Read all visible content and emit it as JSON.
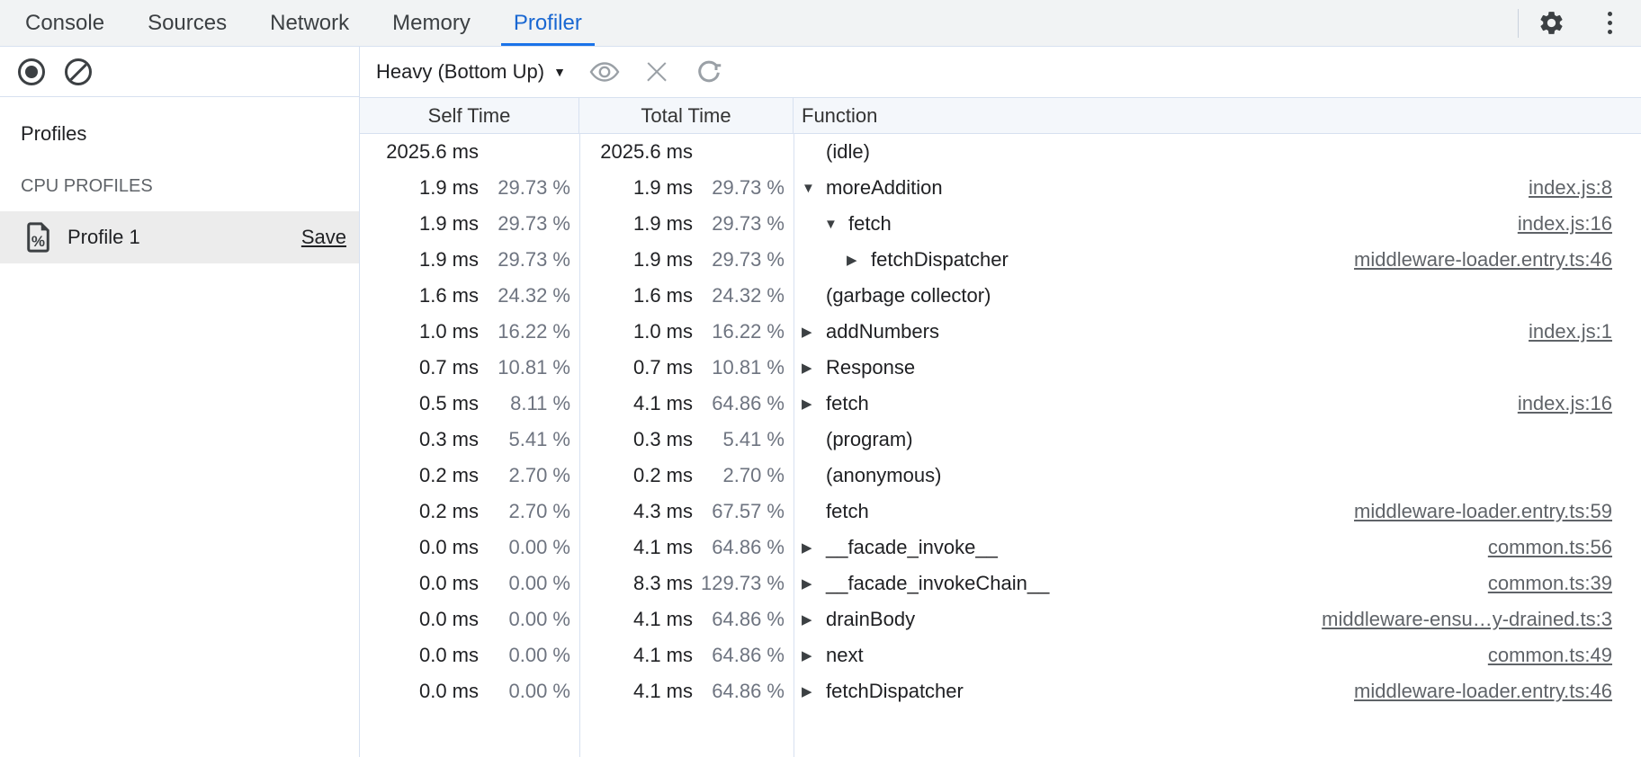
{
  "colors": {
    "accent": "#1a73e8",
    "active_tab_text": "#1967d2",
    "hairline": "#d7e1f0",
    "header_bg": "#f4f7fb",
    "selected_row_bg": "#ececec",
    "link": "#5f6368",
    "pct_text": "#6e7480"
  },
  "tabs": {
    "items": [
      {
        "label": "Console"
      },
      {
        "label": "Sources"
      },
      {
        "label": "Network"
      },
      {
        "label": "Memory"
      },
      {
        "label": "Profiler"
      }
    ],
    "active_tab": "Profiler"
  },
  "tabbar_icons": {
    "settings": "gear-icon",
    "more": "kebab-menu-icon"
  },
  "sidebar": {
    "toolbar_icons": {
      "record": "record-icon",
      "clear": "block-icon"
    },
    "profiles_heading": "Profiles",
    "group_heading": "CPU PROFILES",
    "profile": {
      "icon": "profile-document-icon",
      "name": "Profile 1",
      "save_label": "Save"
    }
  },
  "grid_toolbar": {
    "view_selector_value": "Heavy (Bottom Up)",
    "caret": "▼",
    "icons": {
      "focus": "eye-icon",
      "exclude": "close-icon",
      "restore": "refresh-icon"
    }
  },
  "grid": {
    "columns": [
      "Self Time",
      "Total Time",
      "Function"
    ],
    "tree_arrows": {
      "down": "▼",
      "right": "▶"
    },
    "rows": [
      {
        "self_ms": "2025.6 ms",
        "self_pct": "",
        "total_ms": "2025.6 ms",
        "total_pct": "",
        "fn": "(idle)",
        "level": 0,
        "arrow": null,
        "link": ""
      },
      {
        "self_ms": "1.9 ms",
        "self_pct": "29.73 %",
        "total_ms": "1.9 ms",
        "total_pct": "29.73 %",
        "fn": "moreAddition",
        "level": 0,
        "arrow": "down",
        "link": "index.js:8"
      },
      {
        "self_ms": "1.9 ms",
        "self_pct": "29.73 %",
        "total_ms": "1.9 ms",
        "total_pct": "29.73 %",
        "fn": "fetch",
        "level": 1,
        "arrow": "down",
        "link": "index.js:16"
      },
      {
        "self_ms": "1.9 ms",
        "self_pct": "29.73 %",
        "total_ms": "1.9 ms",
        "total_pct": "29.73 %",
        "fn": "fetchDispatcher",
        "level": 2,
        "arrow": "right",
        "link": "middleware-loader.entry.ts:46"
      },
      {
        "self_ms": "1.6 ms",
        "self_pct": "24.32 %",
        "total_ms": "1.6 ms",
        "total_pct": "24.32 %",
        "fn": "(garbage collector)",
        "level": 0,
        "arrow": null,
        "link": ""
      },
      {
        "self_ms": "1.0 ms",
        "self_pct": "16.22 %",
        "total_ms": "1.0 ms",
        "total_pct": "16.22 %",
        "fn": "addNumbers",
        "level": 0,
        "arrow": "right",
        "link": "index.js:1"
      },
      {
        "self_ms": "0.7 ms",
        "self_pct": "10.81 %",
        "total_ms": "0.7 ms",
        "total_pct": "10.81 %",
        "fn": "Response",
        "level": 0,
        "arrow": "right",
        "link": ""
      },
      {
        "self_ms": "0.5 ms",
        "self_pct": "8.11 %",
        "total_ms": "4.1 ms",
        "total_pct": "64.86 %",
        "fn": "fetch",
        "level": 0,
        "arrow": "right",
        "link": "index.js:16"
      },
      {
        "self_ms": "0.3 ms",
        "self_pct": "5.41 %",
        "total_ms": "0.3 ms",
        "total_pct": "5.41 %",
        "fn": "(program)",
        "level": 0,
        "arrow": null,
        "link": ""
      },
      {
        "self_ms": "0.2 ms",
        "self_pct": "2.70 %",
        "total_ms": "0.2 ms",
        "total_pct": "2.70 %",
        "fn": "(anonymous)",
        "level": 0,
        "arrow": null,
        "link": ""
      },
      {
        "self_ms": "0.2 ms",
        "self_pct": "2.70 %",
        "total_ms": "4.3 ms",
        "total_pct": "67.57 %",
        "fn": "fetch",
        "level": 0,
        "arrow": null,
        "link": "middleware-loader.entry.ts:59"
      },
      {
        "self_ms": "0.0 ms",
        "self_pct": "0.00 %",
        "total_ms": "4.1 ms",
        "total_pct": "64.86 %",
        "fn": "__facade_invoke__",
        "level": 0,
        "arrow": "right",
        "link": "common.ts:56"
      },
      {
        "self_ms": "0.0 ms",
        "self_pct": "0.00 %",
        "total_ms": "8.3 ms",
        "total_pct": "129.73 %",
        "fn": "__facade_invokeChain__",
        "level": 0,
        "arrow": "right",
        "link": "common.ts:39"
      },
      {
        "self_ms": "0.0 ms",
        "self_pct": "0.00 %",
        "total_ms": "4.1 ms",
        "total_pct": "64.86 %",
        "fn": "drainBody",
        "level": 0,
        "arrow": "right",
        "link": "middleware-ensu…y-drained.ts:3"
      },
      {
        "self_ms": "0.0 ms",
        "self_pct": "0.00 %",
        "total_ms": "4.1 ms",
        "total_pct": "64.86 %",
        "fn": "next",
        "level": 0,
        "arrow": "right",
        "link": "common.ts:49"
      },
      {
        "self_ms": "0.0 ms",
        "self_pct": "0.00 %",
        "total_ms": "4.1 ms",
        "total_pct": "64.86 %",
        "fn": "fetchDispatcher",
        "level": 0,
        "arrow": "right",
        "link": "middleware-loader.entry.ts:46"
      }
    ]
  }
}
